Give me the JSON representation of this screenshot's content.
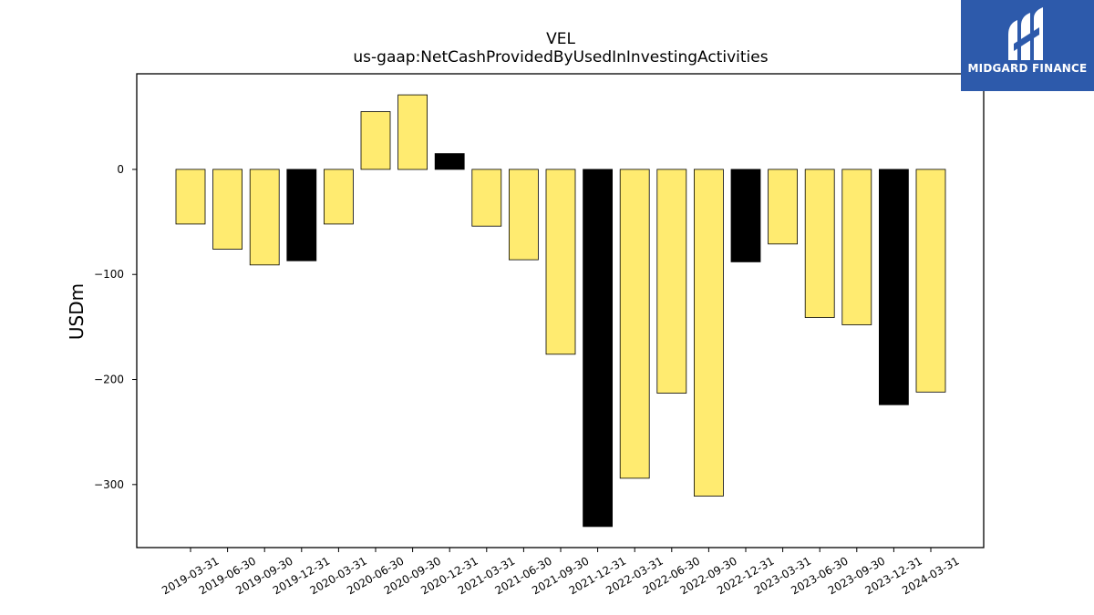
{
  "brand": {
    "name": "MIDGARD FINANCE",
    "logo_icon": "midgard-m-logo-icon",
    "background_color": "#2d5aab"
  },
  "chart_data": {
    "type": "bar",
    "title": "VEL",
    "subtitle": "us-gaap:NetCashProvidedByUsedInInvestingActivities",
    "xlabel": "",
    "ylabel": "USDm",
    "ylim": [
      -360,
      91
    ],
    "yticks": [
      0,
      -100,
      -200,
      -300
    ],
    "ytick_labels": [
      "0",
      "−100",
      "−200",
      "−300"
    ],
    "grid": false,
    "categories": [
      "2019-03-31",
      "2019-06-30",
      "2019-09-30",
      "2019-12-31",
      "2020-03-31",
      "2020-06-30",
      "2020-09-30",
      "2020-12-31",
      "2021-03-31",
      "2021-06-30",
      "2021-09-30",
      "2021-12-31",
      "2022-03-31",
      "2022-06-30",
      "2022-09-30",
      "2022-12-31",
      "2023-03-31",
      "2023-06-30",
      "2023-09-30",
      "2023-12-31",
      "2024-03-31"
    ],
    "values": [
      -52,
      -76,
      -91,
      -87,
      -52,
      55,
      71,
      15,
      -54,
      -86,
      -176,
      -340,
      -294,
      -213,
      -311,
      -88,
      -71,
      -141,
      -148,
      -224,
      -212
    ],
    "bar_colors": [
      "#ffeb70",
      "#ffeb70",
      "#ffeb70",
      "#000000",
      "#ffeb70",
      "#ffeb70",
      "#ffeb70",
      "#000000",
      "#ffeb70",
      "#ffeb70",
      "#ffeb70",
      "#000000",
      "#ffeb70",
      "#ffeb70",
      "#ffeb70",
      "#000000",
      "#ffeb70",
      "#ffeb70",
      "#ffeb70",
      "#000000",
      "#ffeb70"
    ]
  }
}
